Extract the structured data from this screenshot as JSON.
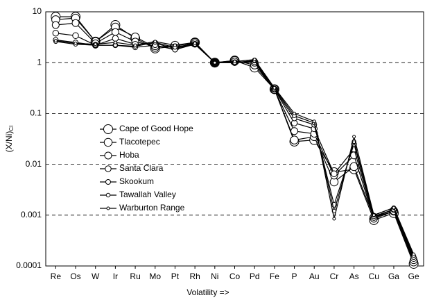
{
  "chart_data": {
    "type": "line",
    "ylabel": "(X/Ni)",
    "ylabel_subscript": "CI",
    "xlabel": "Volatility =>",
    "log_y": true,
    "grid": true,
    "legend": "center-left",
    "categories": [
      "Re",
      "Os",
      "W",
      "Ir",
      "Ru",
      "Mo",
      "Pt",
      "Rh",
      "Ni",
      "Co",
      "Pd",
      "Fe",
      "P",
      "Au",
      "Cr",
      "As",
      "Cu",
      "Ga",
      "Ge"
    ],
    "ylim": [
      0.0001,
      10
    ],
    "yticks": [
      0.0001,
      0.001,
      0.01,
      0.1,
      1,
      10
    ],
    "series": [
      {
        "name": "Cape of Good Hope",
        "color": "#000000",
        "values": [
          8,
          8,
          2.6,
          5.5,
          3,
          1.9,
          2.1,
          2.5,
          1,
          1.1,
          0.8,
          0.3,
          0.028,
          0.03,
          0.007,
          0.008,
          0.0008,
          0.0011,
          0.00011
        ]
      },
      {
        "name": "Tlacotepec",
        "color": "#000000",
        "values": [
          7,
          7.5,
          2.6,
          5,
          3.2,
          2,
          2.2,
          2.5,
          1,
          1.1,
          0.9,
          0.3,
          0.03,
          0.035,
          0.0045,
          0.009,
          0.0009,
          0.0012,
          0.00012
        ]
      },
      {
        "name": "Hoba",
        "color": "#000000",
        "values": [
          5.5,
          6,
          2.4,
          4,
          2.6,
          2.1,
          2,
          2.4,
          1,
          1.05,
          1,
          0.29,
          0.045,
          0.04,
          0.006,
          0.015,
          0.00085,
          0.0012,
          0.00013
        ]
      },
      {
        "name": "Santa Clara",
        "color": "#000000",
        "values": [
          3.8,
          3.4,
          2.2,
          3,
          2.3,
          2.4,
          1.9,
          2.3,
          1,
          1,
          1.05,
          0.3,
          0.065,
          0.05,
          0.0065,
          0.02,
          0.0009,
          0.0013,
          0.00014
        ]
      },
      {
        "name": "Skookum",
        "color": "#000000",
        "values": [
          2.8,
          2.5,
          2.2,
          2.2,
          2,
          2.2,
          1.8,
          2.3,
          1,
          1,
          1.1,
          0.3,
          0.08,
          0.06,
          0.0016,
          0.025,
          0.00095,
          0.0013,
          0.00015
        ]
      },
      {
        "name": "Tawallah Valley",
        "color": "#000000",
        "values": [
          2.6,
          2.3,
          2.2,
          2.2,
          2.1,
          2.5,
          2,
          2.3,
          1,
          1,
          1.1,
          0.31,
          0.09,
          0.065,
          0.0012,
          0.028,
          0.001,
          0.0014,
          0.00016
        ]
      },
      {
        "name": "Warburton Range",
        "color": "#000000",
        "values": [
          2.7,
          2.4,
          2.3,
          2.5,
          2.2,
          2.6,
          2.2,
          2.4,
          1,
          1.05,
          1.15,
          0.32,
          0.1,
          0.07,
          0.00085,
          0.035,
          0.001,
          0.0014,
          0.00017
        ]
      }
    ]
  }
}
